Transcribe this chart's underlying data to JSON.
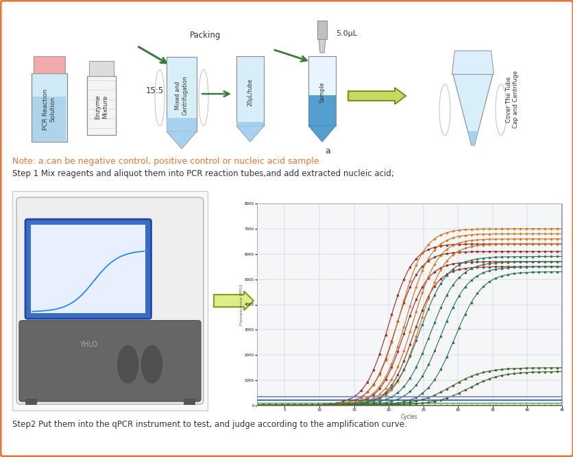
{
  "border_color": "#E8763A",
  "background_color": "#ffffff",
  "note_text": "Note: a.can be negative control, positive control or nucleic acid sample",
  "note_color": "#E8763A",
  "step1_text": "Step 1 Mix reagents and aliquot them into PCR reaction tubes,and add extracted nucleic acid;",
  "step2_text": "Step2 Put them into the qPCR instrument to test, and judge according to the amplification curve.",
  "step1_color": "#333333",
  "step2_color": "#333333",
  "packing_label": "Packing",
  "ratio_label": "15:5",
  "vol_label": "5.0μL",
  "tube3_label": "Mixed and\nCentrifugation",
  "tube4_label": "20μL/tube",
  "tube5_label": "Sample",
  "tube6_label": "Cover The Tube\nCap and Centrifuge",
  "arrow_color": "#3a7a3a",
  "figsize": [
    8.37,
    6.67
  ],
  "dpi": 100
}
